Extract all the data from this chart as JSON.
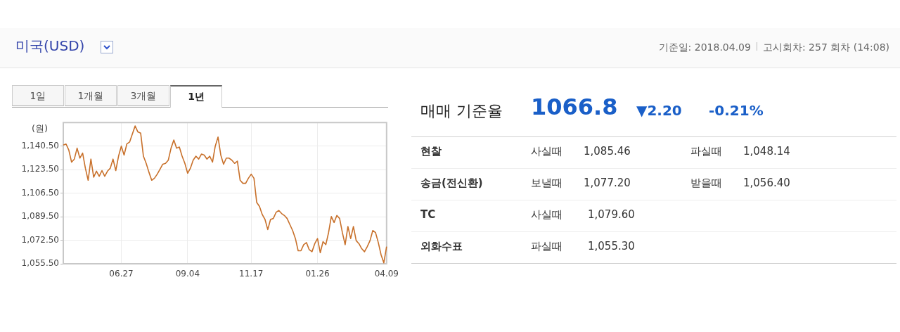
{
  "chart_data": [
    {
      "type": "line",
      "title": "미국(USD)",
      "ylabel": "(원)",
      "annotations": [
        "1일",
        "1개월",
        "3개월",
        "1년"
      ],
      "categories": [
        null,
        null,
        null,
        null,
        null,
        null,
        null,
        null,
        null,
        null,
        null,
        null,
        null,
        null,
        null,
        null,
        null,
        null,
        null,
        null,
        null,
        "06.27",
        null,
        null,
        null,
        null,
        null,
        null,
        null,
        null,
        null,
        null,
        null,
        null,
        null,
        null,
        null,
        null,
        null,
        null,
        null,
        null,
        null,
        null,
        null,
        "09.04",
        null,
        null,
        null,
        null,
        null,
        null,
        null,
        null,
        null,
        null,
        null,
        null,
        null,
        null,
        null,
        null,
        null,
        null,
        null,
        null,
        null,
        null,
        "11.17",
        null,
        null,
        null,
        null,
        null,
        null,
        null,
        null,
        null,
        null,
        null,
        null,
        null,
        null,
        null,
        null,
        null,
        null,
        null,
        null,
        null,
        null,
        null,
        "01.26",
        null,
        null,
        null,
        null,
        null,
        null,
        null,
        null,
        null,
        null,
        null,
        null,
        null,
        null,
        null,
        null,
        null,
        null,
        null,
        null,
        null,
        null,
        null,
        null,
        "04.09"
      ],
      "series": [
        {
          "color": "#c8702a",
          "values": [
            1141.2,
            1142.0,
            1137.6,
            1128.9,
            1131.1,
            1139.0,
            1131.8,
            1135.4,
            1124.5,
            1115.8,
            1131.1,
            1118.0,
            1122.4,
            1118.7,
            1122.8,
            1118.7,
            1122.4,
            1124.5,
            1131.1,
            1122.8,
            1133.2,
            1140.5,
            1134.0,
            1142.0,
            1143.4,
            1149.2,
            1155.0,
            1150.7,
            1149.9,
            1133.2,
            1128.0,
            1121.6,
            1115.8,
            1117.3,
            1120.2,
            1123.8,
            1127.4,
            1128.0,
            1130.3,
            1139.0,
            1144.9,
            1139.0,
            1139.8,
            1133.2,
            1128.0,
            1120.9,
            1124.5,
            1130.3,
            1133.2,
            1131.1,
            1134.7,
            1134.0,
            1131.1,
            1133.2,
            1128.9,
            1140.5,
            1147.0,
            1134.0,
            1127.4,
            1131.8,
            1131.8,
            1130.3,
            1128.0,
            1129.6,
            1115.8,
            1113.6,
            1113.6,
            1117.3,
            1120.2,
            1117.3,
            1099.8,
            1096.9,
            1091.1,
            1087.5,
            1080.2,
            1087.5,
            1088.2,
            1092.6,
            1094.0,
            1091.8,
            1090.4,
            1088.2,
            1083.8,
            1079.5,
            1073.7,
            1064.9,
            1064.9,
            1069.3,
            1070.8,
            1065.7,
            1064.2,
            1070.0,
            1073.7,
            1063.5,
            1071.5,
            1069.3,
            1078.0,
            1089.6,
            1085.3,
            1090.4,
            1088.2,
            1078.0,
            1069.3,
            1082.4,
            1073.7,
            1082.4,
            1072.2,
            1070.0,
            1066.4,
            1064.2,
            1067.9,
            1072.2,
            1079.5,
            1078.0,
            1070.8,
            1062.0,
            1056.2,
            1067.9
          ]
        }
      ],
      "ylim": [
        1055.5,
        1157.5
      ],
      "yticks": [
        {
          "value": 1055.5,
          "label": "1,055.50"
        },
        {
          "value": 1072.5,
          "label": "1,072.50"
        },
        {
          "value": 1089.5,
          "label": "1,089.50"
        },
        {
          "value": 1106.5,
          "label": "1,106.50"
        },
        {
          "value": 1123.5,
          "label": "1,123.50"
        },
        {
          "value": 1140.5,
          "label": "1,140.50"
        }
      ],
      "grid": true,
      "legend": false,
      "marker": "none",
      "line_style": "solid"
    },
    {
      "type": "other",
      "title": "매매 기준율",
      "annotations": [
        "기준일: 2018.04.09",
        "고시회차: 257 회차 (14:08)",
        "1066.8",
        "▼2.20",
        "-0.21%",
        "현찰",
        "사실때",
        "1,085.46",
        "파실때",
        "1,048.14",
        "송금(전신환)",
        "보낼때",
        "1,077.20",
        "받을때",
        "1,056.40",
        "TC",
        "사실때",
        "1,079.60",
        "외화수표",
        "파실때",
        "1,055.30"
      ]
    }
  ]
}
